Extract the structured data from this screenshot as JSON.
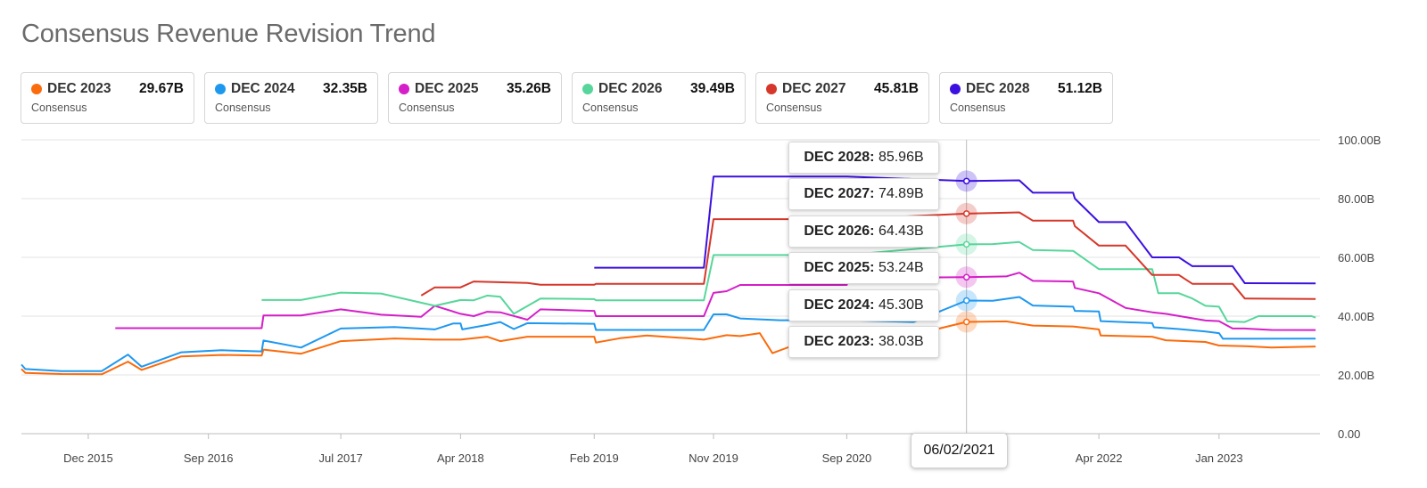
{
  "title": "Consensus Revenue Revision Trend",
  "legend_cards": [
    {
      "label": "DEC 2023",
      "value": "29.67B",
      "sub": "Consensus",
      "color": "#fa6b0c"
    },
    {
      "label": "DEC 2024",
      "value": "32.35B",
      "sub": "Consensus",
      "color": "#1e98ef"
    },
    {
      "label": "DEC 2025",
      "value": "35.26B",
      "sub": "Consensus",
      "color": "#d51fc8"
    },
    {
      "label": "DEC 2026",
      "value": "39.49B",
      "sub": "Consensus",
      "color": "#56d69a"
    },
    {
      "label": "DEC 2027",
      "value": "45.81B",
      "sub": "Consensus",
      "color": "#d5372a"
    },
    {
      "label": "DEC 2028",
      "value": "51.12B",
      "sub": "Consensus",
      "color": "#3c10de"
    }
  ],
  "tooltips": [
    {
      "label": "DEC 2028:",
      "value": "85.96B"
    },
    {
      "label": "DEC 2027:",
      "value": "74.89B"
    },
    {
      "label": "DEC 2026:",
      "value": "64.43B"
    },
    {
      "label": "DEC 2025:",
      "value": "53.24B"
    },
    {
      "label": "DEC 2024:",
      "value": "45.30B"
    },
    {
      "label": "DEC 2023:",
      "value": "38.03B"
    }
  ],
  "crosshair_date": "06/02/2021",
  "chart_data": {
    "type": "line",
    "title": "Consensus Revenue Revision Trend",
    "x_tick_labels": [
      "Dec 2015",
      "Sep 2016",
      "Jul 2017",
      "Apr 2018",
      "Feb 2019",
      "Nov 2019",
      "Sep 2020",
      "Apr 2022",
      "Jan 2023"
    ],
    "x_tick_dates": [
      "2015-12-01",
      "2016-09-01",
      "2017-07-01",
      "2018-04-01",
      "2019-02-01",
      "2019-11-01",
      "2020-09-01",
      "2022-04-01",
      "2023-01-01"
    ],
    "y_tick_labels": [
      "0.00",
      "20.00B",
      "40.00B",
      "60.00B",
      "80.00B",
      "100.00B"
    ],
    "y_tick_values": [
      0,
      20,
      40,
      60,
      80,
      100
    ],
    "xlim": [
      "2015-07-01",
      "2023-08-20"
    ],
    "ylim": [
      0,
      100
    ],
    "y_axis_side": "right",
    "grid": "horizontal",
    "crosshair_x": "2021-06-02",
    "series": [
      {
        "name": "DEC 2023",
        "color": "#fa6b0c",
        "points": [
          [
            "2015-07-01",
            22
          ],
          [
            "2015-07-10",
            20.7
          ],
          [
            "2015-10-01",
            20.3
          ],
          [
            "2016-01-01",
            20.2
          ],
          [
            "2016-03-01",
            24.5
          ],
          [
            "2016-04-01",
            21.7
          ],
          [
            "2016-07-01",
            26.3
          ],
          [
            "2016-10-01",
            26.8
          ],
          [
            "2017-01-01",
            26.6
          ],
          [
            "2017-01-05",
            28.6
          ],
          [
            "2017-04-01",
            27.2
          ],
          [
            "2017-07-01",
            31.5
          ],
          [
            "2017-11-01",
            32.4
          ],
          [
            "2018-02-01",
            32
          ],
          [
            "2018-04-01",
            32
          ],
          [
            "2018-06-01",
            33
          ],
          [
            "2018-07-01",
            31.5
          ],
          [
            "2018-09-01",
            33
          ],
          [
            "2019-02-01",
            33
          ],
          [
            "2019-02-05",
            31
          ],
          [
            "2019-04-01",
            32.5
          ],
          [
            "2019-06-01",
            33.4
          ],
          [
            "2019-09-01",
            32.5
          ],
          [
            "2019-10-10",
            32
          ],
          [
            "2019-12-01",
            33.5
          ],
          [
            "2020-01-01",
            33.2
          ],
          [
            "2020-02-15",
            34.2
          ],
          [
            "2020-03-15",
            27.4
          ],
          [
            "2020-05-01",
            30
          ],
          [
            "2020-06-01",
            31.3
          ],
          [
            "2020-09-01",
            34.7
          ],
          [
            "2021-03-01",
            34.7
          ],
          [
            "2021-06-02",
            38.03
          ],
          [
            "2021-09-01",
            38.2
          ],
          [
            "2021-11-01",
            36.8
          ],
          [
            "2022-02-01",
            36.5
          ],
          [
            "2022-04-01",
            35.5
          ],
          [
            "2022-04-05",
            33.4
          ],
          [
            "2022-08-01",
            33
          ],
          [
            "2022-09-01",
            31.8
          ],
          [
            "2022-12-01",
            31.2
          ],
          [
            "2023-01-01",
            30
          ],
          [
            "2023-03-01",
            29.8
          ],
          [
            "2023-05-01",
            29.3
          ],
          [
            "2023-08-10",
            29.67
          ]
        ]
      },
      {
        "name": "DEC 2024",
        "color": "#1e98ef",
        "points": [
          [
            "2015-07-01",
            23.5
          ],
          [
            "2015-07-10",
            22
          ],
          [
            "2015-10-01",
            21.3
          ],
          [
            "2016-01-01",
            21.3
          ],
          [
            "2016-03-01",
            26.9
          ],
          [
            "2016-04-01",
            22.8
          ],
          [
            "2016-07-01",
            27.7
          ],
          [
            "2016-10-01",
            28.4
          ],
          [
            "2017-01-01",
            28
          ],
          [
            "2017-01-05",
            31.7
          ],
          [
            "2017-04-01",
            29.3
          ],
          [
            "2017-07-01",
            35.8
          ],
          [
            "2017-11-01",
            36.3
          ],
          [
            "2018-02-01",
            35.5
          ],
          [
            "2018-03-15",
            37.5
          ],
          [
            "2018-04-01",
            37.5
          ],
          [
            "2018-04-05",
            35.5
          ],
          [
            "2018-06-01",
            37
          ],
          [
            "2018-07-01",
            38
          ],
          [
            "2018-08-01",
            35.6
          ],
          [
            "2018-09-01",
            37.6
          ],
          [
            "2019-02-01",
            37.4
          ],
          [
            "2019-02-05",
            35.3
          ],
          [
            "2019-10-10",
            35.3
          ],
          [
            "2019-11-01",
            40.6
          ],
          [
            "2019-12-01",
            40.6
          ],
          [
            "2020-01-01",
            39.2
          ],
          [
            "2020-04-01",
            38.6
          ],
          [
            "2020-09-01",
            38.6
          ],
          [
            "2021-02-01",
            38
          ],
          [
            "2021-06-02",
            45.3
          ],
          [
            "2021-08-01",
            45.2
          ],
          [
            "2021-10-01",
            46.5
          ],
          [
            "2021-11-01",
            43.6
          ],
          [
            "2022-02-01",
            43.2
          ],
          [
            "2022-02-05",
            41.8
          ],
          [
            "2022-04-01",
            41.6
          ],
          [
            "2022-04-05",
            38.3
          ],
          [
            "2022-08-01",
            37.6
          ],
          [
            "2022-08-05",
            36.2
          ],
          [
            "2022-10-01",
            35.6
          ],
          [
            "2022-12-01",
            34.8
          ],
          [
            "2023-01-01",
            34.2
          ],
          [
            "2023-01-10",
            32.3
          ],
          [
            "2023-08-10",
            32.35
          ]
        ]
      },
      {
        "name": "DEC 2025",
        "color": "#d51fc8",
        "points": [
          [
            "2016-02-01",
            35.9
          ],
          [
            "2017-01-01",
            35.9
          ],
          [
            "2017-01-05",
            40.2
          ],
          [
            "2017-04-01",
            40.2
          ],
          [
            "2017-07-01",
            42.3
          ],
          [
            "2017-10-01",
            40.5
          ],
          [
            "2018-01-01",
            39.8
          ],
          [
            "2018-02-01",
            43.5
          ],
          [
            "2018-04-01",
            40.8
          ],
          [
            "2018-05-01",
            40
          ],
          [
            "2018-06-01",
            41.5
          ],
          [
            "2018-07-01",
            41.3
          ],
          [
            "2018-09-01",
            38.8
          ],
          [
            "2018-10-01",
            42.3
          ],
          [
            "2019-02-01",
            41.8
          ],
          [
            "2019-02-05",
            40
          ],
          [
            "2019-10-10",
            40
          ],
          [
            "2019-11-01",
            47.9
          ],
          [
            "2019-12-01",
            48.5
          ],
          [
            "2020-01-01",
            50.6
          ],
          [
            "2020-09-01",
            50.6
          ],
          [
            "2020-09-05",
            53
          ],
          [
            "2021-06-02",
            53.24
          ],
          [
            "2021-09-01",
            53.5
          ],
          [
            "2021-10-01",
            54.8
          ],
          [
            "2021-11-01",
            52
          ],
          [
            "2022-02-01",
            51.8
          ],
          [
            "2022-02-05",
            49.6
          ],
          [
            "2022-04-01",
            47.8
          ],
          [
            "2022-06-01",
            42.8
          ],
          [
            "2022-08-01",
            41.3
          ],
          [
            "2022-09-01",
            40.8
          ],
          [
            "2022-12-01",
            38.5
          ],
          [
            "2023-01-01",
            38.3
          ],
          [
            "2023-02-01",
            35.8
          ],
          [
            "2023-03-01",
            35.8
          ],
          [
            "2023-05-01",
            35.3
          ],
          [
            "2023-08-10",
            35.26
          ]
        ]
      },
      {
        "name": "DEC 2026",
        "color": "#56d69a",
        "points": [
          [
            "2017-01-01",
            45.5
          ],
          [
            "2017-04-01",
            45.5
          ],
          [
            "2017-07-01",
            48
          ],
          [
            "2017-10-01",
            47.7
          ],
          [
            "2018-02-01",
            43.5
          ],
          [
            "2018-04-01",
            45.5
          ],
          [
            "2018-05-01",
            45.4
          ],
          [
            "2018-06-01",
            47
          ],
          [
            "2018-07-01",
            46.6
          ],
          [
            "2018-08-01",
            40.8
          ],
          [
            "2018-10-01",
            46
          ],
          [
            "2019-02-01",
            45.8
          ],
          [
            "2019-02-05",
            45.4
          ],
          [
            "2019-10-10",
            45.4
          ],
          [
            "2019-11-01",
            60.8
          ],
          [
            "2020-09-01",
            60.8
          ],
          [
            "2021-06-02",
            64.43
          ],
          [
            "2021-08-01",
            64.5
          ],
          [
            "2021-10-01",
            65.2
          ],
          [
            "2021-11-01",
            62.5
          ],
          [
            "2022-02-01",
            62.2
          ],
          [
            "2022-04-01",
            56
          ],
          [
            "2022-08-01",
            56
          ],
          [
            "2022-08-15",
            47.8
          ],
          [
            "2022-10-01",
            47.8
          ],
          [
            "2022-11-01",
            46
          ],
          [
            "2022-12-01",
            43.5
          ],
          [
            "2023-01-01",
            43.2
          ],
          [
            "2023-01-20",
            38.2
          ],
          [
            "2023-03-01",
            38
          ],
          [
            "2023-04-01",
            40
          ],
          [
            "2023-08-01",
            40
          ],
          [
            "2023-08-10",
            39.49
          ]
        ]
      },
      {
        "name": "DEC 2027",
        "color": "#d5372a",
        "points": [
          [
            "2018-01-01",
            47
          ],
          [
            "2018-02-01",
            49.8
          ],
          [
            "2018-04-01",
            49.8
          ],
          [
            "2018-05-01",
            51.8
          ],
          [
            "2018-09-01",
            51.3
          ],
          [
            "2018-10-01",
            50.7
          ],
          [
            "2019-02-01",
            50.7
          ],
          [
            "2019-02-05",
            51
          ],
          [
            "2019-10-10",
            51
          ],
          [
            "2019-11-01",
            73
          ],
          [
            "2020-09-01",
            73
          ],
          [
            "2021-06-02",
            74.89
          ],
          [
            "2021-10-01",
            75.3
          ],
          [
            "2021-11-01",
            72.5
          ],
          [
            "2022-02-01",
            72.5
          ],
          [
            "2022-02-05",
            70.6
          ],
          [
            "2022-04-01",
            64
          ],
          [
            "2022-06-01",
            64
          ],
          [
            "2022-08-01",
            54
          ],
          [
            "2022-10-01",
            54
          ],
          [
            "2022-11-01",
            51
          ],
          [
            "2023-02-01",
            51
          ],
          [
            "2023-03-01",
            46
          ],
          [
            "2023-08-10",
            45.81
          ]
        ]
      },
      {
        "name": "DEC 2028",
        "color": "#3c10de",
        "points": [
          [
            "2019-02-01",
            56.5
          ],
          [
            "2019-10-10",
            56.5
          ],
          [
            "2019-11-01",
            87.5
          ],
          [
            "2020-09-01",
            87.5
          ],
          [
            "2021-06-02",
            85.96
          ],
          [
            "2021-10-01",
            86.2
          ],
          [
            "2021-11-01",
            82
          ],
          [
            "2022-02-01",
            82
          ],
          [
            "2022-02-05",
            80
          ],
          [
            "2022-04-01",
            72
          ],
          [
            "2022-06-01",
            72
          ],
          [
            "2022-08-01",
            60
          ],
          [
            "2022-10-01",
            60
          ],
          [
            "2022-11-01",
            57
          ],
          [
            "2023-02-01",
            57
          ],
          [
            "2023-03-01",
            51.2
          ],
          [
            "2023-08-10",
            51.12
          ]
        ]
      }
    ]
  }
}
